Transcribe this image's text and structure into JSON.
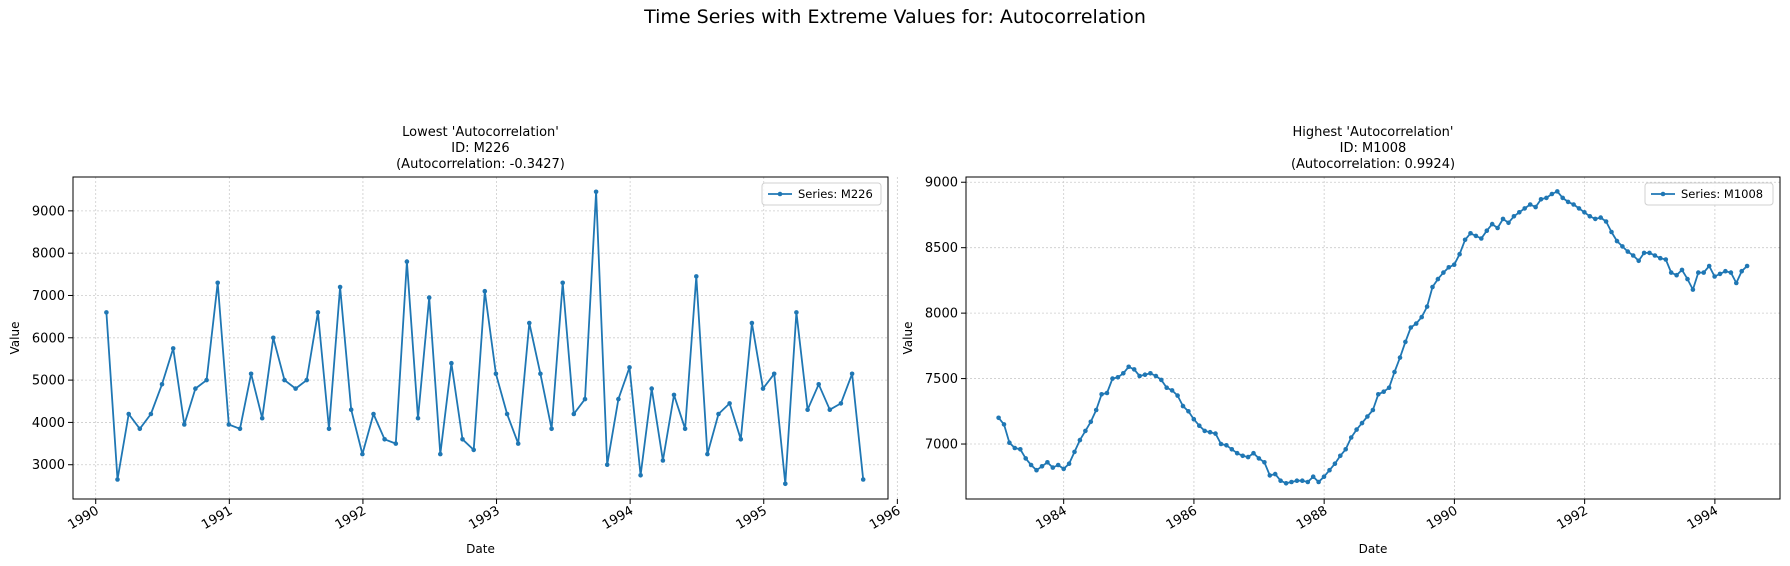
{
  "figure": {
    "suptitle": "Time Series with Extreme Values for: Autocorrelation"
  },
  "chart_data": [
    {
      "type": "line",
      "title_lines": [
        "Lowest 'Autocorrelation'",
        "ID: M226",
        "(Autocorrelation: -0.3427)"
      ],
      "xlabel": "Date",
      "ylabel": "Value",
      "xlim": [
        1989.83,
        1995.93
      ],
      "ylim": [
        2190,
        9800
      ],
      "xticks": [
        1990,
        1991,
        1992,
        1993,
        1994,
        1995,
        1996
      ],
      "xtick_labels": [
        "1990",
        "1991",
        "1992",
        "1993",
        "1994",
        "1995",
        "1996"
      ],
      "yticks": [
        3000,
        4000,
        5000,
        6000,
        7000,
        8000,
        9000
      ],
      "ytick_labels": [
        "3000",
        "4000",
        "5000",
        "6000",
        "7000",
        "8000",
        "9000"
      ],
      "grid": true,
      "legend_position": "top-right",
      "series": [
        {
          "name": "Series: M226",
          "color": "#1f77b4",
          "x_start": 1990.08,
          "x_step": 0.0833,
          "values": [
            6600,
            2650,
            4200,
            3850,
            4200,
            4900,
            5750,
            3950,
            4800,
            5000,
            7300,
            3950,
            3850,
            5150,
            4100,
            6000,
            5000,
            4800,
            5000,
            6600,
            3850,
            7200,
            4300,
            3250,
            4200,
            3600,
            3500,
            7800,
            4100,
            6950,
            3250,
            5400,
            3600,
            3350,
            7100,
            5150,
            4200,
            3500,
            6350,
            5150,
            3850,
            7300,
            4200,
            4550,
            9450,
            3000,
            4550,
            5300,
            2750,
            4800,
            3100,
            4650,
            3850,
            7450,
            3250,
            4200,
            4450,
            3600,
            6350,
            4800,
            5150,
            2550,
            6600,
            4300,
            4900,
            4300,
            4450,
            5150,
            2650
          ]
        }
      ]
    },
    {
      "type": "line",
      "title_lines": [
        "Highest 'Autocorrelation'",
        "ID: M1008",
        "(Autocorrelation: 0.9924)"
      ],
      "xlabel": "Date",
      "ylabel": "Value",
      "xlim": [
        1982.5,
        1995.0
      ],
      "ylim": [
        6580,
        9040
      ],
      "xticks": [
        1984,
        1986,
        1988,
        1990,
        1992,
        1994
      ],
      "xtick_labels": [
        "1984",
        "1986",
        "1988",
        "1990",
        "1992",
        "1994"
      ],
      "yticks": [
        7000,
        7500,
        8000,
        8500,
        9000
      ],
      "ytick_labels": [
        "7000",
        "7500",
        "8000",
        "8500",
        "9000"
      ],
      "grid": true,
      "legend_position": "top-right",
      "series": [
        {
          "name": "Series: M1008",
          "color": "#1f77b4",
          "x_start": 1983.0,
          "x_step": 0.0833,
          "values": [
            7200,
            7150,
            7010,
            6970,
            6960,
            6890,
            6840,
            6800,
            6830,
            6860,
            6820,
            6840,
            6810,
            6850,
            6940,
            7030,
            7100,
            7170,
            7260,
            7380,
            7390,
            7500,
            7510,
            7540,
            7590,
            7570,
            7520,
            7530,
            7540,
            7520,
            7490,
            7430,
            7410,
            7370,
            7290,
            7250,
            7190,
            7140,
            7100,
            7090,
            7080,
            7000,
            6990,
            6960,
            6930,
            6910,
            6900,
            6930,
            6890,
            6860,
            6760,
            6770,
            6720,
            6700,
            6710,
            6720,
            6720,
            6710,
            6750,
            6710,
            6750,
            6800,
            6850,
            6910,
            6960,
            7050,
            7110,
            7160,
            7210,
            7260,
            7380,
            7400,
            7430,
            7550,
            7660,
            7780,
            7890,
            7920,
            7970,
            8050,
            8200,
            8260,
            8310,
            8350,
            8370,
            8450,
            8560,
            8610,
            8590,
            8570,
            8630,
            8680,
            8650,
            8720,
            8690,
            8740,
            8770,
            8800,
            8830,
            8810,
            8870,
            8880,
            8910,
            8930,
            8880,
            8850,
            8830,
            8800,
            8770,
            8740,
            8720,
            8730,
            8700,
            8620,
            8550,
            8510,
            8470,
            8440,
            8400,
            8460,
            8460,
            8440,
            8420,
            8410,
            8310,
            8290,
            8330,
            8260,
            8180,
            8310,
            8310,
            8360,
            8280,
            8300,
            8320,
            8310,
            8230,
            8320,
            8360
          ]
        }
      ]
    }
  ]
}
